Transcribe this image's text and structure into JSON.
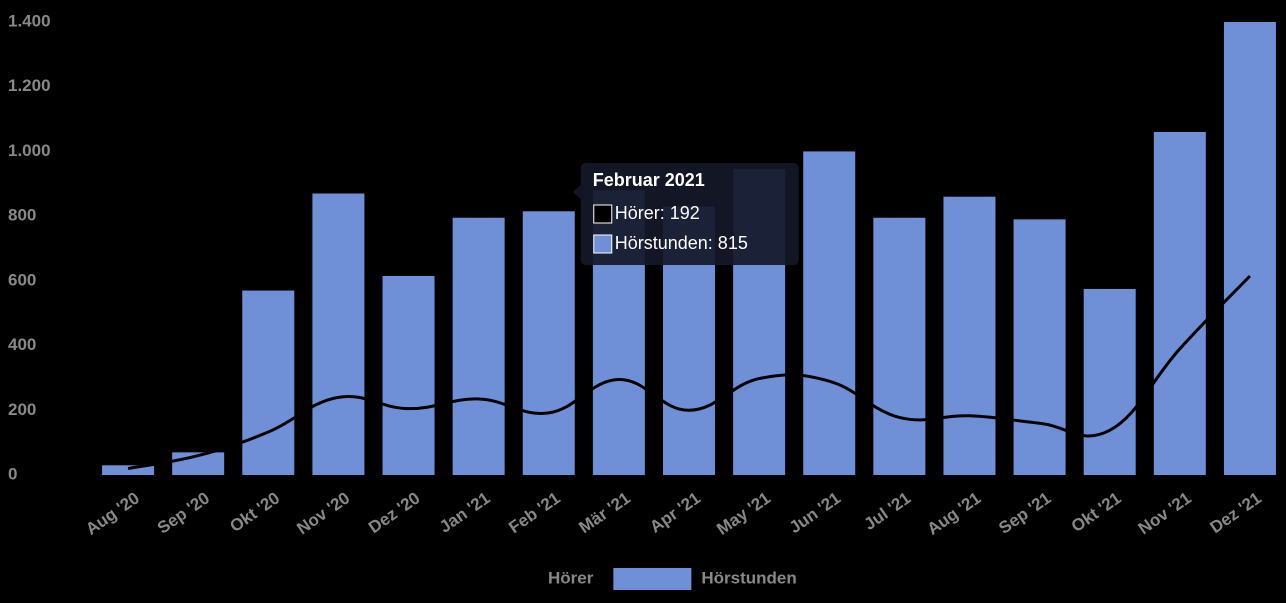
{
  "chart_data": {
    "type": "bar",
    "categories": [
      "Aug '20",
      "Sep '20",
      "Okt '20",
      "Nov '20",
      "Dez '20",
      "Jan '21",
      "Feb '21",
      "Mär '21",
      "Apr '21",
      "May '21",
      "Jun '21",
      "Jul '21",
      "Aug '21",
      "Sep '21",
      "Okt '21",
      "Nov '21",
      "Dez '21"
    ],
    "series": [
      {
        "name": "Hörstunden",
        "type": "bar",
        "color": "#6f8fd6",
        "values": [
          30,
          70,
          570,
          870,
          615,
          795,
          815,
          880,
          830,
          945,
          1000,
          795,
          860,
          790,
          575,
          1060,
          1400
        ]
      },
      {
        "name": "Hörer",
        "type": "line",
        "color": "#000000",
        "values": [
          20,
          60,
          133,
          240,
          205,
          235,
          192,
          295,
          200,
          298,
          290,
          178,
          183,
          160,
          138,
          390,
          615
        ]
      }
    ],
    "ylim": [
      0,
      1400
    ],
    "yticks": [
      0,
      200,
      400,
      600,
      800,
      {
        "value": 1000,
        "label": "1.000"
      },
      {
        "value": 1200,
        "label": "1.200"
      },
      {
        "value": 1400,
        "label": "1.400"
      }
    ],
    "legend_order": [
      1,
      0
    ],
    "tooltip": {
      "title": "Februar 2021",
      "index": 6,
      "items": [
        "Hörer: 192",
        "Hörstunden: 815"
      ]
    }
  }
}
